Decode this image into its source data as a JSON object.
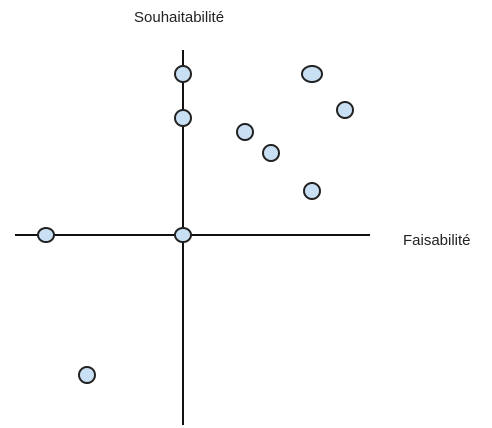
{
  "axes": {
    "x_label": "Faisabilité",
    "y_label": "Souhaitabilité"
  },
  "colors": {
    "axis": "#111111",
    "marker_fill": "#c9dff3",
    "marker_stroke": "#222222"
  },
  "points": [
    {
      "name": "point-1"
    },
    {
      "name": "point-2"
    },
    {
      "name": "point-3"
    },
    {
      "name": "point-4"
    },
    {
      "name": "point-5"
    },
    {
      "name": "point-6"
    },
    {
      "name": "point-7"
    },
    {
      "name": "point-8"
    },
    {
      "name": "point-9"
    },
    {
      "name": "point-10"
    }
  ]
}
